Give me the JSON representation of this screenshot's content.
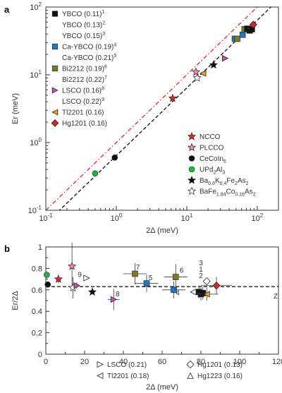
{
  "chart_data": [
    {
      "panel": "a",
      "type": "scatter",
      "xscale": "log",
      "yscale": "log",
      "xlim": [
        0.1,
        200
      ],
      "ylim": [
        0.1,
        100
      ],
      "xlabel": "2Δ (meV)",
      "ylabel": "Er (meV)",
      "xticks": [
        "10^-1",
        "10^0",
        "10^1",
        "10^2"
      ],
      "yticks": [
        "10^-1",
        "10^0",
        "10^1",
        "10^2"
      ],
      "fit_line": {
        "style": "black-dashed",
        "slope": 0.64
      },
      "upper_bound_line": {
        "style": "red-dash-dot",
        "slope": 1.0
      },
      "legend_left": [
        {
          "name": "YBCO",
          "label": "(0.11)",
          "sup": "1",
          "marker": "square",
          "color": "#111111"
        },
        {
          "name": "YBCO",
          "label": "(0.13)",
          "sup": "2",
          "marker": "none",
          "color": "#111111"
        },
        {
          "name": "YBCO",
          "label": "(0.15)",
          "sup": "3",
          "marker": "none",
          "color": "#111111"
        },
        {
          "name": "Ca-YBCO",
          "label": "(0.19)",
          "sup": "4",
          "marker": "square",
          "color": "#1f77c4"
        },
        {
          "name": "Ca-YBCO",
          "label": "(0.21)",
          "sup": "5",
          "marker": "none",
          "color": "#1f77c4"
        },
        {
          "name": "Bi2212",
          "label": "(0.19)",
          "sup": "6",
          "marker": "square",
          "color": "#7a7a2a"
        },
        {
          "name": "Bi2212",
          "label": "(0.22)",
          "sup": "7",
          "marker": "none",
          "color": "#7a7a2a"
        },
        {
          "name": "LSCO",
          "label": "(0.16)",
          "sup": "8",
          "marker": "tri-right",
          "color": "#d44fb0"
        },
        {
          "name": "LSCO",
          "label": "(0.22)",
          "sup": "9",
          "marker": "none",
          "color": "#d44fb0"
        },
        {
          "name": "Tl2201",
          "label": "(0.16)",
          "sup": "",
          "marker": "tri-left",
          "color": "#f0a51c"
        },
        {
          "name": "Hg1201",
          "label": "(0.16)",
          "sup": "",
          "marker": "diamond",
          "color": "#d62728"
        }
      ],
      "legend_right": [
        {
          "label": "NCCO",
          "sub": "",
          "marker": "star",
          "color": "#e0282e"
        },
        {
          "label": "PLCCO",
          "sub": "",
          "marker": "star",
          "color": "#f08aa6"
        },
        {
          "label": "CeCoIn",
          "sub": "5",
          "marker": "circle",
          "color": "#111111"
        },
        {
          "label": "UPd",
          "sub": "2",
          "tail": "Al",
          "sub2": "3",
          "marker": "circle",
          "color": "#22b04b"
        },
        {
          "label": "Ba",
          "sub": "0.6",
          "tail": "K",
          "sub2": "0.4",
          "tail2": "Fe",
          "sub3": "2",
          "tail3": "As",
          "sub4": "2",
          "marker": "star",
          "color": "#111111"
        },
        {
          "label": "BaFe",
          "sub": "1.84",
          "tail": "Co",
          "sub2": "0.16",
          "tail2": "As",
          "sub3": "2",
          "marker": "star-open",
          "color": "#ffffff"
        }
      ],
      "points": [
        {
          "x": 0.5,
          "y": 0.35,
          "marker": "circle",
          "color": "#22b04b"
        },
        {
          "x": 0.95,
          "y": 0.6,
          "marker": "circle",
          "color": "#111111"
        },
        {
          "x": 6.3,
          "y": 4.5,
          "marker": "star",
          "color": "#e0282e"
        },
        {
          "x": 13.5,
          "y": 11.0,
          "marker": "star",
          "color": "#f08aa6"
        },
        {
          "x": 14.0,
          "y": 9.0,
          "marker": "star-open",
          "color": "#ffffff"
        },
        {
          "x": 17.0,
          "y": 10.5,
          "marker": "tri-left",
          "color": "#f0a51c"
        },
        {
          "x": 24.0,
          "y": 14.0,
          "marker": "star",
          "color": "#111111"
        },
        {
          "x": 35.0,
          "y": 17.5,
          "marker": "tri-right",
          "color": "#d44fb0"
        },
        {
          "x": 48.0,
          "y": 34.0,
          "marker": "square",
          "color": "#1f77c4"
        },
        {
          "x": 52.0,
          "y": 34.0,
          "marker": "square",
          "color": "#7a7a2a"
        },
        {
          "x": 62.0,
          "y": 39.0,
          "marker": "square",
          "color": "#1f77c4"
        },
        {
          "x": 66.0,
          "y": 47.0,
          "marker": "square",
          "color": "#7a7a2a"
        },
        {
          "x": 72.0,
          "y": 48.0,
          "marker": "square",
          "color": "#111111"
        },
        {
          "x": 78.0,
          "y": 45.0,
          "marker": "square",
          "color": "#111111"
        },
        {
          "x": 80.0,
          "y": 48.0,
          "marker": "tri-left",
          "color": "#f0a51c"
        },
        {
          "x": 84.0,
          "y": 47.0,
          "marker": "square",
          "color": "#111111"
        },
        {
          "x": 88.0,
          "y": 55.0,
          "marker": "diamond",
          "color": "#d62728"
        }
      ]
    },
    {
      "panel": "b",
      "type": "scatter",
      "xlim": [
        0,
        120
      ],
      "ylim": [
        0,
        1
      ],
      "xlabel": "2Δ (meV)",
      "ylabel": "Er/2Δ",
      "xticks": [
        0,
        20,
        40,
        60,
        80,
        100,
        120
      ],
      "yticks": [
        0,
        0.2,
        0.4,
        0.6,
        0.8,
        1
      ],
      "dashed_line_y": 0.63,
      "points": [
        {
          "x": 0.5,
          "y": 0.74,
          "marker": "circle",
          "color": "#22b04b",
          "xerr": 0,
          "yerr": 0
        },
        {
          "x": 1.0,
          "y": 0.65,
          "marker": "circle",
          "color": "#111111",
          "xerr": 0,
          "yerr": 0
        },
        {
          "x": 6.5,
          "y": 0.7,
          "marker": "star",
          "color": "#e0282e",
          "xerr": 1.0,
          "yerr": 0.04
        },
        {
          "x": 13.5,
          "y": 0.82,
          "marker": "star",
          "color": "#f08aa6",
          "xerr": 1.0,
          "yerr": 0.22
        },
        {
          "x": 14.0,
          "y": 0.62,
          "marker": "star-open",
          "color": "#ffffff",
          "xerr": 1.0,
          "yerr": 0.1
        },
        {
          "x": 16.0,
          "y": 0.64,
          "marker": "tri-right",
          "color": "#d44fb0",
          "xerr": 1.5,
          "yerr": 0.03
        },
        {
          "x": 24.0,
          "y": 0.58,
          "marker": "star",
          "color": "#111111",
          "xerr": 0,
          "yerr": 0
        },
        {
          "x": 35.0,
          "y": 0.51,
          "marker": "tri-right",
          "color": "#d44fb0",
          "xerr": 3.0,
          "yerr": 0.1
        },
        {
          "x": 46.0,
          "y": 0.75,
          "marker": "square",
          "color": "#7a7a2a",
          "xerr": 6.0,
          "yerr": 0.1
        },
        {
          "x": 52.0,
          "y": 0.66,
          "marker": "square",
          "color": "#1f77c4",
          "xerr": 6.0,
          "yerr": 0.08
        },
        {
          "x": 66.0,
          "y": 0.6,
          "marker": "square",
          "color": "#1f77c4",
          "xerr": 6.0,
          "yerr": 0.08
        },
        {
          "x": 67.0,
          "y": 0.72,
          "marker": "square",
          "color": "#7a7a2a",
          "xerr": 6.0,
          "yerr": 0.12
        },
        {
          "x": 79.0,
          "y": 0.58,
          "marker": "square",
          "color": "#111111",
          "xerr": 3.0,
          "yerr": 0.06
        },
        {
          "x": 80.0,
          "y": 0.56,
          "marker": "square",
          "color": "#111111",
          "xerr": 3.0,
          "yerr": 0.06
        },
        {
          "x": 81.0,
          "y": 0.57,
          "marker": "square",
          "color": "#111111",
          "xerr": 3.0,
          "yerr": 0.06
        },
        {
          "x": 83.0,
          "y": 0.56,
          "marker": "tri-left",
          "color": "#f0a51c",
          "xerr": 6.0,
          "yerr": 0.06
        },
        {
          "x": 88.0,
          "y": 0.64,
          "marker": "diamond",
          "color": "#d62728",
          "xerr": 8.0,
          "yerr": 0.08
        },
        {
          "x": 21.0,
          "y": 0.71,
          "marker": "tri-right-open",
          "color": "#ffffff",
          "xerr": 0,
          "yerr": 0
        },
        {
          "x": 76.0,
          "y": 0.58,
          "marker": "tri-left-open",
          "color": "#ffffff",
          "xerr": 0,
          "yerr": 0
        },
        {
          "x": 83.0,
          "y": 0.68,
          "marker": "diamond-open",
          "color": "#ffffff",
          "xerr": 0,
          "yerr": 0
        }
      ],
      "number_labels": [
        {
          "text": "9",
          "x": 17.5,
          "y": 0.72
        },
        {
          "text": "8",
          "x": 37.0,
          "y": 0.54
        },
        {
          "text": "7",
          "x": 47.5,
          "y": 0.79
        },
        {
          "text": "5",
          "x": 54.0,
          "y": 0.69
        },
        {
          "text": "6",
          "x": 70.0,
          "y": 0.76
        },
        {
          "text": "4",
          "x": 68.0,
          "y": 0.55
        },
        {
          "text": "3",
          "x": 80.0,
          "y": 0.83
        },
        {
          "text": "1",
          "x": 80.0,
          "y": 0.77
        },
        {
          "text": "2",
          "x": 80.0,
          "y": 0.71
        }
      ],
      "edge_label": "Z",
      "bottom_legend": [
        {
          "marker": "tri-right-open",
          "label": "LSCO (0.21)"
        },
        {
          "marker": "diamond-open",
          "label": "Hg1201 (0.13)"
        },
        {
          "marker": "tri-left-open",
          "label": "Tl2201 (0.18)"
        },
        {
          "marker": "tri-up-open",
          "label": "Hg1223 (0.16)"
        }
      ]
    }
  ],
  "panel_labels": {
    "a": "a",
    "b": "b"
  }
}
